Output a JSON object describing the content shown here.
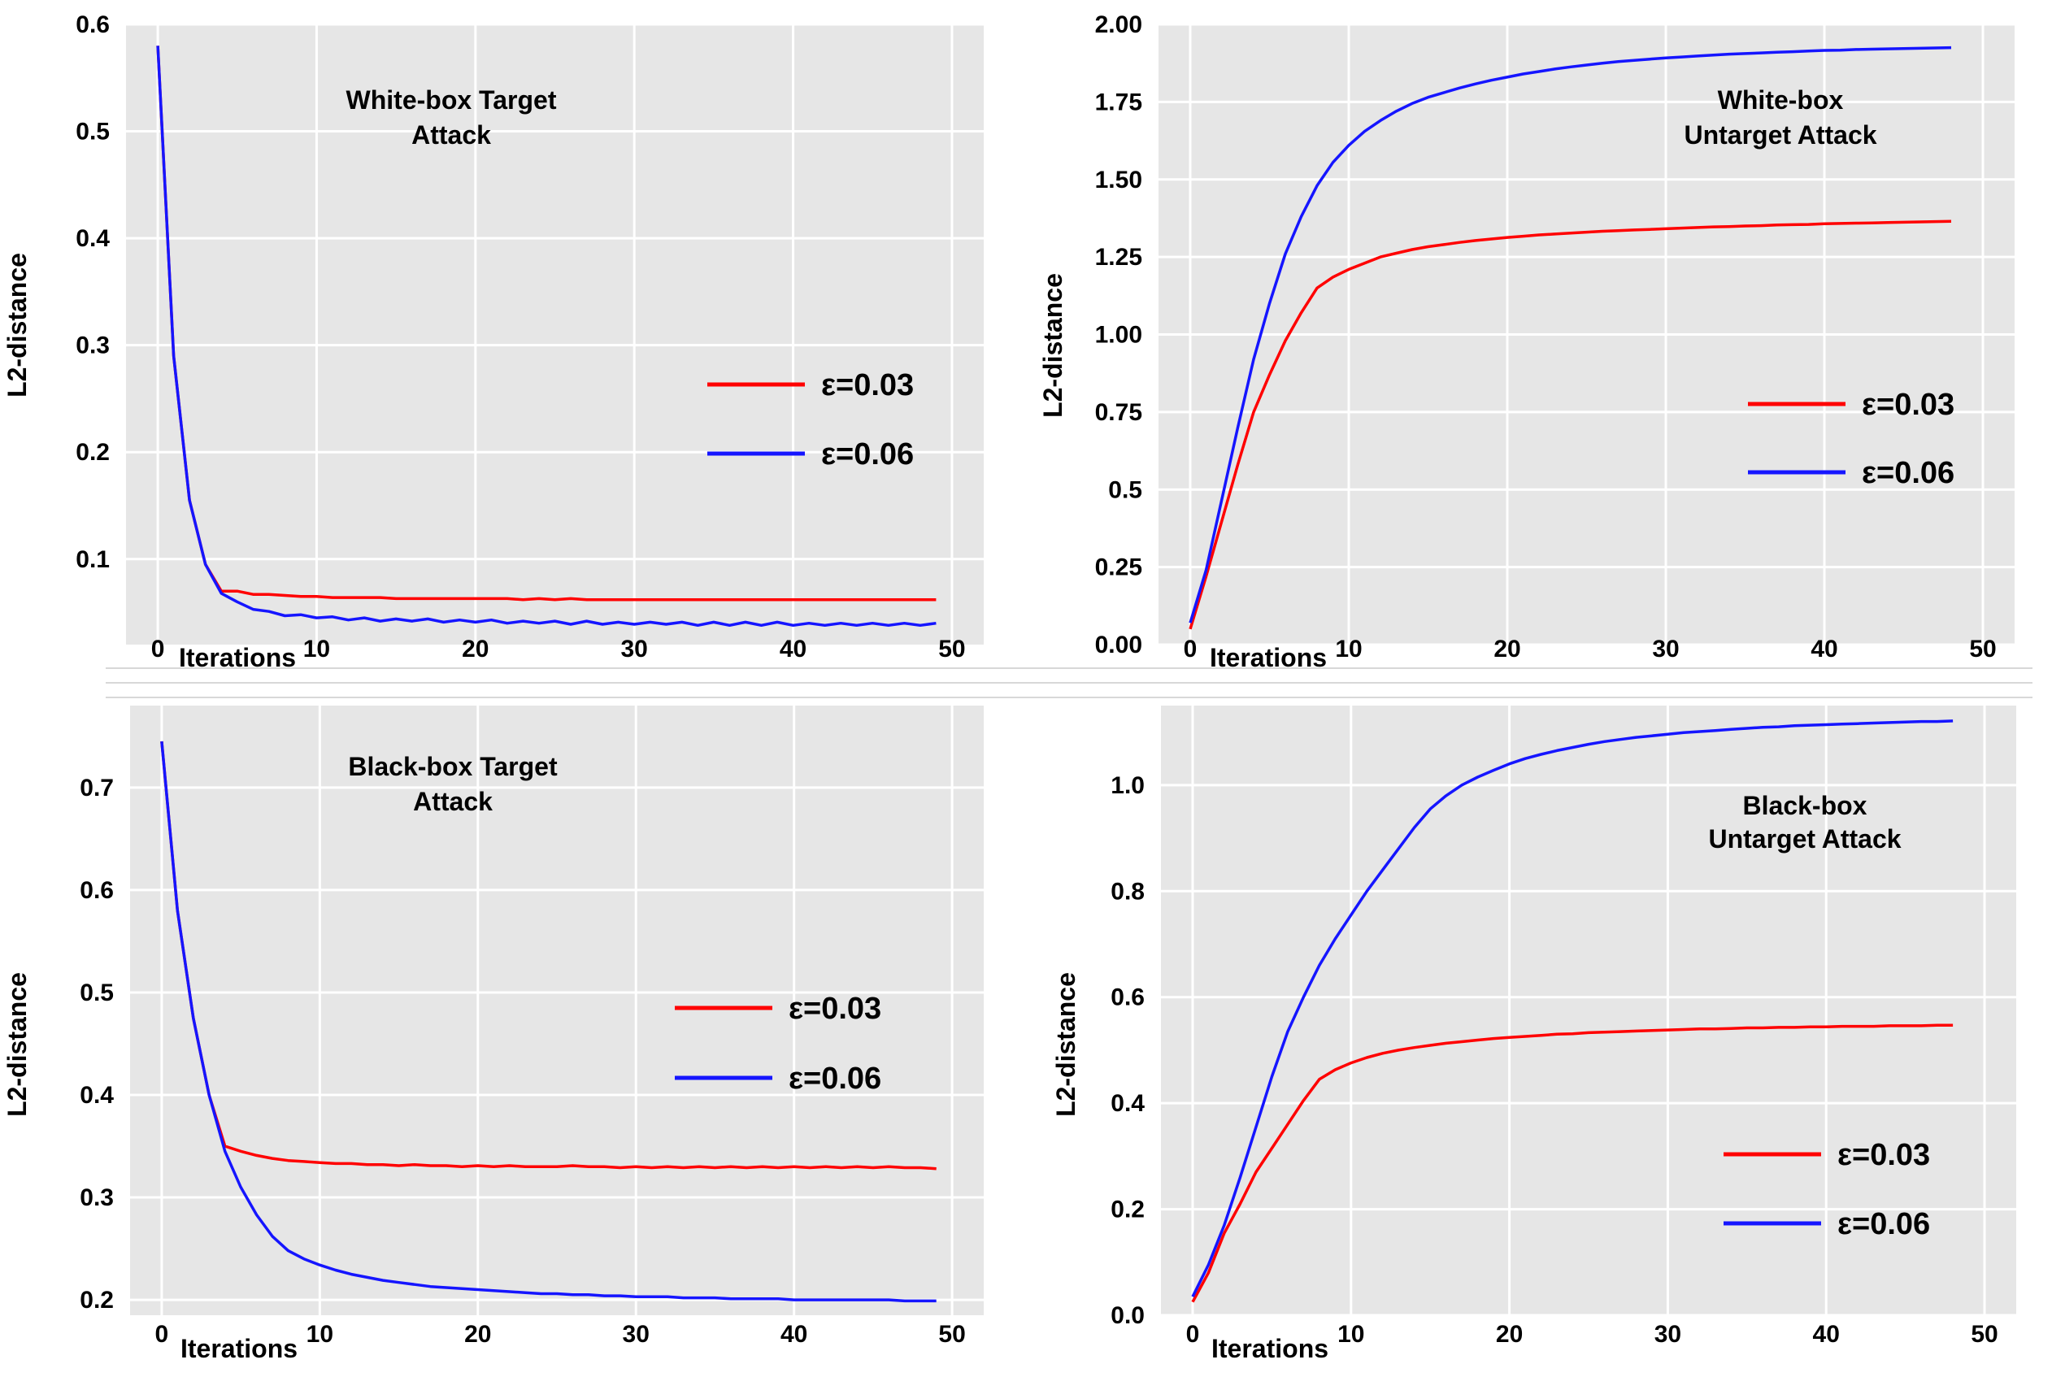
{
  "chart_data": [
    {
      "type": "line",
      "title": [
        "White-box Target",
        "Attack"
      ],
      "xlabel": "Iterations",
      "ylabel": "L2-distance",
      "xlim": [
        -2,
        52
      ],
      "ylim": [
        0.02,
        0.6
      ],
      "xticks": [
        "0",
        "10",
        "20",
        "30",
        "40",
        "50"
      ],
      "xtick_values": [
        0,
        10,
        20,
        30,
        40,
        50
      ],
      "yticks": [
        "0.1",
        "0.2",
        "0.3",
        "0.4",
        "0.5",
        "0.6"
      ],
      "ytick_values": [
        0.1,
        0.2,
        0.3,
        0.4,
        0.5,
        0.6
      ],
      "x": [
        0,
        1,
        2,
        3,
        4,
        5,
        6,
        7,
        8,
        9,
        10,
        11,
        12,
        13,
        14,
        15,
        16,
        17,
        18,
        19,
        20,
        21,
        22,
        23,
        24,
        25,
        26,
        27,
        28,
        29,
        30,
        31,
        32,
        33,
        34,
        35,
        36,
        37,
        38,
        39,
        40,
        41,
        42,
        43,
        44,
        45,
        46,
        47,
        48,
        49
      ],
      "series": [
        {
          "name": "ε=0.03",
          "color": "#ff0000",
          "values": [
            0.58,
            0.29,
            0.155,
            0.095,
            0.07,
            0.07,
            0.067,
            0.067,
            0.066,
            0.065,
            0.065,
            0.064,
            0.064,
            0.064,
            0.064,
            0.063,
            0.063,
            0.063,
            0.063,
            0.063,
            0.063,
            0.063,
            0.063,
            0.062,
            0.063,
            0.062,
            0.063,
            0.062,
            0.062,
            0.062,
            0.062,
            0.062,
            0.062,
            0.062,
            0.062,
            0.062,
            0.062,
            0.062,
            0.062,
            0.062,
            0.062,
            0.062,
            0.062,
            0.062,
            0.062,
            0.062,
            0.062,
            0.062,
            0.062,
            0.062
          ]
        },
        {
          "name": "ε=0.06",
          "color": "#1515ff",
          "values": [
            0.58,
            0.29,
            0.155,
            0.095,
            0.068,
            0.06,
            0.053,
            0.051,
            0.047,
            0.048,
            0.045,
            0.046,
            0.043,
            0.045,
            0.042,
            0.044,
            0.042,
            0.044,
            0.041,
            0.043,
            0.041,
            0.043,
            0.04,
            0.042,
            0.04,
            0.042,
            0.039,
            0.042,
            0.039,
            0.041,
            0.039,
            0.041,
            0.039,
            0.041,
            0.038,
            0.041,
            0.038,
            0.041,
            0.038,
            0.041,
            0.038,
            0.04,
            0.038,
            0.04,
            0.038,
            0.04,
            0.038,
            0.04,
            0.038,
            0.04
          ]
        }
      ]
    },
    {
      "type": "line",
      "title": [
        "White-box",
        "Untarget Attack"
      ],
      "xlabel": "Iterations",
      "ylabel": "L2-distance",
      "xlim": [
        -2,
        52
      ],
      "ylim": [
        0,
        2.0
      ],
      "xticks": [
        "0",
        "10",
        "20",
        "30",
        "40",
        "50"
      ],
      "xtick_values": [
        0,
        10,
        20,
        30,
        40,
        50
      ],
      "yticks": [
        "0.00",
        "0.25",
        "0.5",
        "0.75",
        "1.00",
        "1.25",
        "1.50",
        "1.75",
        "2.00"
      ],
      "ytick_values": [
        0,
        0.25,
        0.5,
        0.75,
        1.0,
        1.25,
        1.5,
        1.75,
        2.0
      ],
      "x": [
        0,
        1,
        2,
        3,
        4,
        5,
        6,
        7,
        8,
        9,
        10,
        11,
        12,
        13,
        14,
        15,
        16,
        17,
        18,
        19,
        20,
        21,
        22,
        23,
        24,
        25,
        26,
        27,
        28,
        29,
        30,
        31,
        32,
        33,
        34,
        35,
        36,
        37,
        38,
        39,
        40,
        41,
        42,
        43,
        44,
        45,
        46,
        47,
        48
      ],
      "series": [
        {
          "name": "ε=0.03",
          "color": "#ff0000",
          "values": [
            0.05,
            0.22,
            0.4,
            0.58,
            0.75,
            0.87,
            0.98,
            1.07,
            1.15,
            1.185,
            1.21,
            1.23,
            1.25,
            1.262,
            1.274,
            1.283,
            1.29,
            1.297,
            1.303,
            1.308,
            1.313,
            1.317,
            1.321,
            1.324,
            1.327,
            1.33,
            1.333,
            1.335,
            1.337,
            1.339,
            1.341,
            1.343,
            1.345,
            1.347,
            1.348,
            1.35,
            1.351,
            1.353,
            1.354,
            1.355,
            1.357,
            1.358,
            1.359,
            1.36,
            1.361,
            1.362,
            1.363,
            1.364,
            1.365
          ]
        },
        {
          "name": "ε=0.06",
          "color": "#1515ff",
          "values": [
            0.07,
            0.24,
            0.47,
            0.7,
            0.92,
            1.1,
            1.26,
            1.38,
            1.48,
            1.555,
            1.61,
            1.655,
            1.69,
            1.72,
            1.745,
            1.765,
            1.78,
            1.795,
            1.808,
            1.82,
            1.83,
            1.84,
            1.848,
            1.856,
            1.863,
            1.869,
            1.875,
            1.88,
            1.884,
            1.888,
            1.892,
            1.895,
            1.898,
            1.901,
            1.904,
            1.906,
            1.908,
            1.91,
            1.912,
            1.914,
            1.916,
            1.917,
            1.919,
            1.92,
            1.921,
            1.922,
            1.923,
            1.924,
            1.925
          ]
        }
      ]
    },
    {
      "type": "line",
      "title": [
        "Black-box Target",
        "Attack"
      ],
      "xlabel": "Iterations",
      "ylabel": "L2-distance",
      "xlim": [
        -2,
        52
      ],
      "ylim": [
        0.185,
        0.78
      ],
      "xticks": [
        "0",
        "10",
        "20",
        "30",
        "40",
        "50"
      ],
      "xtick_values": [
        0,
        10,
        20,
        30,
        40,
        50
      ],
      "yticks": [
        "0.2",
        "0.3",
        "0.4",
        "0.5",
        "0.6",
        "0.7"
      ],
      "ytick_values": [
        0.2,
        0.3,
        0.4,
        0.5,
        0.6,
        0.7
      ],
      "x": [
        0,
        1,
        2,
        3,
        4,
        5,
        6,
        7,
        8,
        9,
        10,
        11,
        12,
        13,
        14,
        15,
        16,
        17,
        18,
        19,
        20,
        21,
        22,
        23,
        24,
        25,
        26,
        27,
        28,
        29,
        30,
        31,
        32,
        33,
        34,
        35,
        36,
        37,
        38,
        39,
        40,
        41,
        42,
        43,
        44,
        45,
        46,
        47,
        48,
        49
      ],
      "series": [
        {
          "name": "ε=0.03",
          "color": "#ff0000",
          "values": [
            0.745,
            0.58,
            0.475,
            0.4,
            0.35,
            0.345,
            0.341,
            0.338,
            0.336,
            0.335,
            0.334,
            0.333,
            0.333,
            0.332,
            0.332,
            0.331,
            0.332,
            0.331,
            0.331,
            0.33,
            0.331,
            0.33,
            0.331,
            0.33,
            0.33,
            0.33,
            0.331,
            0.33,
            0.33,
            0.329,
            0.33,
            0.329,
            0.33,
            0.329,
            0.33,
            0.329,
            0.33,
            0.329,
            0.33,
            0.329,
            0.33,
            0.329,
            0.33,
            0.329,
            0.33,
            0.329,
            0.33,
            0.329,
            0.329,
            0.328
          ]
        },
        {
          "name": "ε=0.06",
          "color": "#1515ff",
          "values": [
            0.745,
            0.58,
            0.475,
            0.4,
            0.345,
            0.31,
            0.283,
            0.262,
            0.248,
            0.24,
            0.234,
            0.229,
            0.225,
            0.222,
            0.219,
            0.217,
            0.215,
            0.213,
            0.212,
            0.211,
            0.21,
            0.209,
            0.208,
            0.207,
            0.206,
            0.206,
            0.205,
            0.205,
            0.204,
            0.204,
            0.203,
            0.203,
            0.203,
            0.202,
            0.202,
            0.202,
            0.201,
            0.201,
            0.201,
            0.201,
            0.2,
            0.2,
            0.2,
            0.2,
            0.2,
            0.2,
            0.2,
            0.199,
            0.199,
            0.199
          ]
        }
      ]
    },
    {
      "type": "line",
      "title": [
        "Black-box",
        "Untarget Attack"
      ],
      "xlabel": "Iterations",
      "ylabel": "L2-distance",
      "xlim": [
        -2,
        52
      ],
      "ylim": [
        0,
        1.15
      ],
      "xticks": [
        "0",
        "10",
        "20",
        "30",
        "40",
        "50"
      ],
      "xtick_values": [
        0,
        10,
        20,
        30,
        40,
        50
      ],
      "yticks": [
        "0.0",
        "0.2",
        "0.4",
        "0.6",
        "0.8",
        "1.0"
      ],
      "ytick_values": [
        0,
        0.2,
        0.4,
        0.6,
        0.8,
        1.0
      ],
      "x": [
        0,
        1,
        2,
        3,
        4,
        5,
        6,
        7,
        8,
        9,
        10,
        11,
        12,
        13,
        14,
        15,
        16,
        17,
        18,
        19,
        20,
        21,
        22,
        23,
        24,
        25,
        26,
        27,
        28,
        29,
        30,
        31,
        32,
        33,
        34,
        35,
        36,
        37,
        38,
        39,
        40,
        41,
        42,
        43,
        44,
        45,
        46,
        47,
        48
      ],
      "series": [
        {
          "name": "ε=0.03",
          "color": "#ff0000",
          "values": [
            0.025,
            0.08,
            0.155,
            0.21,
            0.27,
            0.315,
            0.36,
            0.405,
            0.445,
            0.463,
            0.476,
            0.486,
            0.494,
            0.5,
            0.505,
            0.509,
            0.513,
            0.516,
            0.519,
            0.522,
            0.524,
            0.526,
            0.528,
            0.53,
            0.531,
            0.533,
            0.534,
            0.535,
            0.536,
            0.537,
            0.538,
            0.539,
            0.54,
            0.54,
            0.541,
            0.542,
            0.542,
            0.543,
            0.543,
            0.544,
            0.544,
            0.545,
            0.545,
            0.545,
            0.546,
            0.546,
            0.546,
            0.547,
            0.547
          ]
        },
        {
          "name": "ε=0.06",
          "color": "#1515ff",
          "values": [
            0.035,
            0.095,
            0.17,
            0.26,
            0.355,
            0.45,
            0.535,
            0.6,
            0.66,
            0.71,
            0.755,
            0.8,
            0.84,
            0.88,
            0.92,
            0.955,
            0.98,
            1.0,
            1.015,
            1.028,
            1.04,
            1.05,
            1.058,
            1.065,
            1.071,
            1.077,
            1.082,
            1.086,
            1.09,
            1.093,
            1.096,
            1.099,
            1.101,
            1.103,
            1.105,
            1.107,
            1.109,
            1.11,
            1.112,
            1.113,
            1.114,
            1.115,
            1.116,
            1.117,
            1.118,
            1.119,
            1.12,
            1.12,
            1.121
          ]
        }
      ]
    }
  ]
}
